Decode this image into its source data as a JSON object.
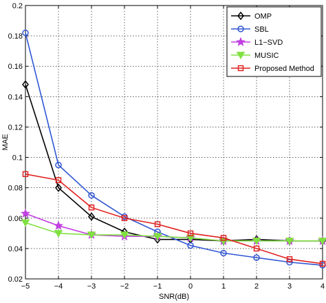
{
  "chart_data": {
    "type": "line",
    "title": "",
    "xlabel": "SNR(dB)",
    "ylabel": "MAE",
    "x": [
      -5,
      -4,
      -3,
      -2,
      -1,
      0,
      1,
      2,
      3,
      4
    ],
    "xlim": [
      -5,
      4
    ],
    "ylim": [
      0.02,
      0.2
    ],
    "xticks": [
      -5,
      -4,
      -3,
      -2,
      -1,
      0,
      1,
      2,
      3,
      4
    ],
    "yticks": [
      0.02,
      0.04,
      0.06,
      0.08,
      0.1,
      0.12,
      0.14,
      0.16,
      0.18,
      0.2
    ],
    "xtick_labels": [
      "−5",
      "−4",
      "−3",
      "−2",
      "−1",
      "0",
      "1",
      "2",
      "3",
      "4"
    ],
    "ytick_labels": [
      "0.02",
      "0.04",
      "0.06",
      "0.08",
      "0.1",
      "0.12",
      "0.14",
      "0.16",
      "0.18",
      "0.2"
    ],
    "grid": true,
    "legend_position": "top-right",
    "series": [
      {
        "name": "OMP",
        "color": "#000000",
        "marker": "diamond",
        "values": [
          0.148,
          0.08,
          0.061,
          0.051,
          0.046,
          0.046,
          0.045,
          0.046,
          0.045,
          0.045
        ]
      },
      {
        "name": "SBL",
        "color": "#2F55D4",
        "marker": "circle",
        "values": [
          0.182,
          0.095,
          0.075,
          0.061,
          0.051,
          0.042,
          0.037,
          0.034,
          0.031,
          0.029
        ]
      },
      {
        "name": "L1−SVD",
        "color": "#C040E0",
        "marker": "star",
        "values": [
          0.063,
          0.055,
          0.049,
          0.048,
          0.048,
          0.047,
          0.045,
          0.045,
          0.045,
          0.045
        ]
      },
      {
        "name": "MUSIC",
        "color": "#80E040",
        "marker": "triangle-down",
        "values": [
          0.057,
          0.05,
          0.049,
          0.049,
          0.048,
          0.047,
          0.045,
          0.045,
          0.045,
          0.045
        ]
      },
      {
        "name": "Proposed Method",
        "color": "#E02020",
        "marker": "square",
        "values": [
          0.089,
          0.085,
          0.067,
          0.06,
          0.056,
          0.05,
          0.047,
          0.04,
          0.033,
          0.03
        ]
      }
    ]
  }
}
